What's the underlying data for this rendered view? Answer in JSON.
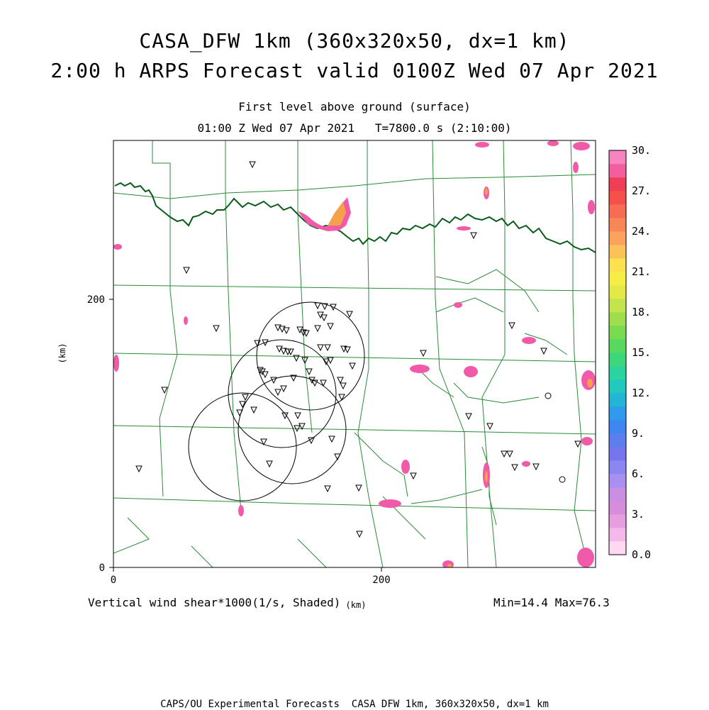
{
  "titles": {
    "line1": "CASA_DFW 1km (360x320x50, dx=1 km)",
    "line2": "2:00 h ARPS Forecast valid 0100Z Wed 07 Apr 2021",
    "sub1": "First level above ground (surface)",
    "sub2": "01:00 Z Wed 07 Apr 2021   T=7800.0 s (2:10:00)"
  },
  "axes": {
    "x_label": "(km)",
    "y_label": "(km)",
    "x_ticks": [
      "0",
      "200"
    ],
    "y_ticks": [
      "0",
      "200"
    ]
  },
  "variable_label": "Vertical wind shear*1000(1/s, Shaded)",
  "minmax": "Min=14.4 Max=76.3",
  "footer": "CAPS/OU Experimental Forecasts  CASA DFW 1km, 360x320x50, dx=1 km",
  "colorbar": {
    "labels": [
      "30.",
      "27.",
      "24.",
      "21.",
      "18.",
      "15.",
      "12.",
      "9.",
      "6.",
      "3.",
      "0.0"
    ],
    "colors": [
      "#ffd9f2",
      "#f5b8ea",
      "#e79de0",
      "#d68ddc",
      "#c88fe3",
      "#a88ff0",
      "#8c86f2",
      "#7676ea",
      "#5d7fee",
      "#3f86f3",
      "#2f9bea",
      "#22b5d5",
      "#22c9bd",
      "#2bd39e",
      "#3ed67a",
      "#57d85e",
      "#79db4f",
      "#9ede4d",
      "#c2e44e",
      "#e3ea47",
      "#f6ee47",
      "#fde14f",
      "#fcc25a",
      "#fba35c",
      "#f98659",
      "#f66c55",
      "#f55148",
      "#f03f55",
      "#f35e9e",
      "#f784c0"
    ]
  },
  "colors": {
    "state_border": "#0a5a1a",
    "county_lines": "#2a8a35",
    "radar_rings": "#000000",
    "shading_low": "#f05aa8",
    "shading_high": "#f5a04a"
  },
  "markers": {
    "triangle": "station-triangle",
    "circle": "station-circle"
  }
}
